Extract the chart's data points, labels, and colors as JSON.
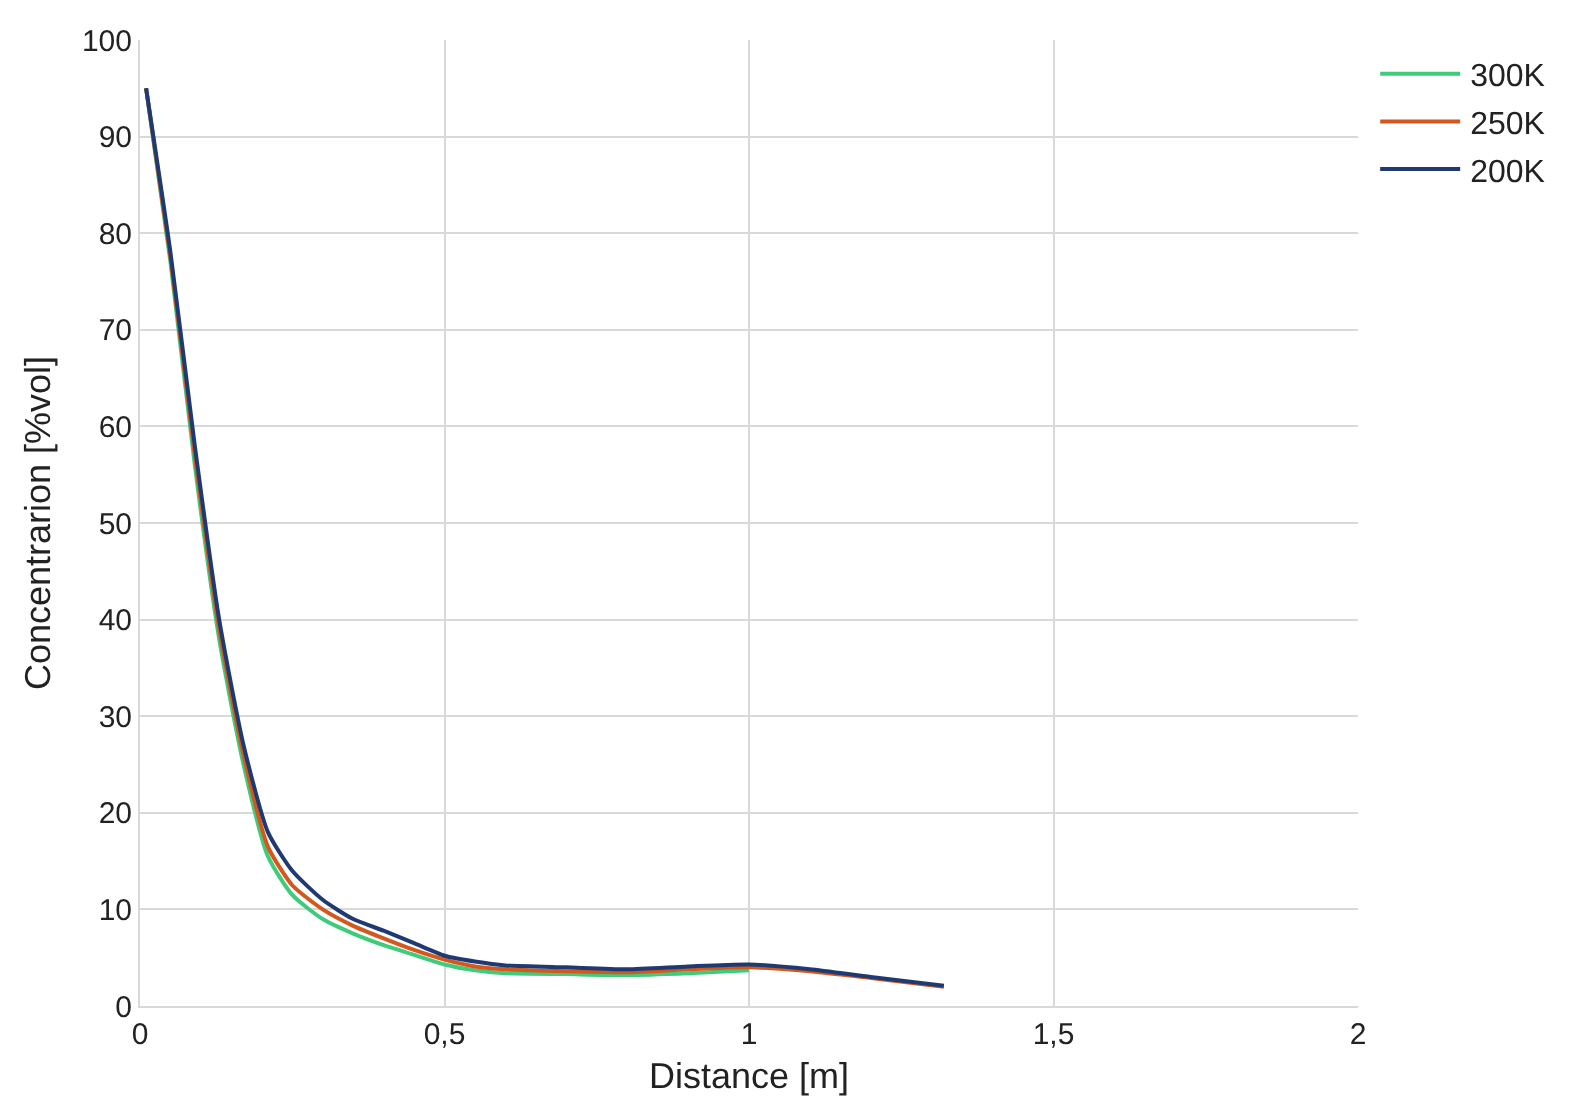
{
  "chart_data": {
    "type": "line",
    "xlabel": "Distance [m]",
    "ylabel": "Concentrarion [%vol]",
    "xlim": [
      0,
      2
    ],
    "xticks": [
      0,
      {
        "value": 0.5,
        "label": "0,5"
      },
      1,
      {
        "value": 1.5,
        "label": "1,5"
      },
      2
    ],
    "ylim": [
      0,
      100
    ],
    "yticks": [
      0,
      10,
      20,
      30,
      40,
      50,
      60,
      70,
      80,
      90,
      100
    ],
    "grid": true,
    "legend": "top right",
    "marker": "none",
    "line_style": "solid",
    "series": [
      {
        "name": "300K",
        "color": "#3fcb7c",
        "x": [
          0.01,
          0.05,
          0.09,
          0.13,
          0.17,
          0.21,
          0.25,
          0.3,
          0.35,
          0.4,
          0.45,
          0.5,
          0.55,
          0.6,
          0.7,
          0.8,
          0.9,
          1.0
        ],
        "values": [
          95,
          77,
          56,
          38,
          25,
          15.5,
          11.5,
          9,
          7.5,
          6.3,
          5.3,
          4.3,
          3.7,
          3.4,
          3.3,
          3.2,
          3.4,
          3.7
        ]
      },
      {
        "name": "250K",
        "color": "#d4581e",
        "x": [
          0.01,
          0.05,
          0.09,
          0.13,
          0.17,
          0.21,
          0.25,
          0.3,
          0.35,
          0.4,
          0.45,
          0.5,
          0.55,
          0.6,
          0.7,
          0.8,
          0.9,
          1.0,
          1.1,
          1.2,
          1.32
        ],
        "values": [
          95,
          77.5,
          57,
          39,
          26,
          16.5,
          12.5,
          10,
          8.3,
          7,
          5.8,
          4.8,
          4.1,
          3.8,
          3.6,
          3.5,
          3.8,
          4.0,
          3.6,
          2.9,
          2.0
        ]
      },
      {
        "name": "200K",
        "color": "#1f3a73",
        "x": [
          0.01,
          0.05,
          0.09,
          0.13,
          0.17,
          0.21,
          0.25,
          0.3,
          0.35,
          0.4,
          0.45,
          0.5,
          0.55,
          0.6,
          0.7,
          0.8,
          0.9,
          1.0,
          1.1,
          1.2,
          1.32
        ],
        "values": [
          95,
          78,
          58,
          40,
          27,
          18,
          14,
          11,
          9,
          7.8,
          6.5,
          5.2,
          4.6,
          4.2,
          4.0,
          3.8,
          4.1,
          4.3,
          3.8,
          3.0,
          2.1
        ]
      }
    ]
  }
}
